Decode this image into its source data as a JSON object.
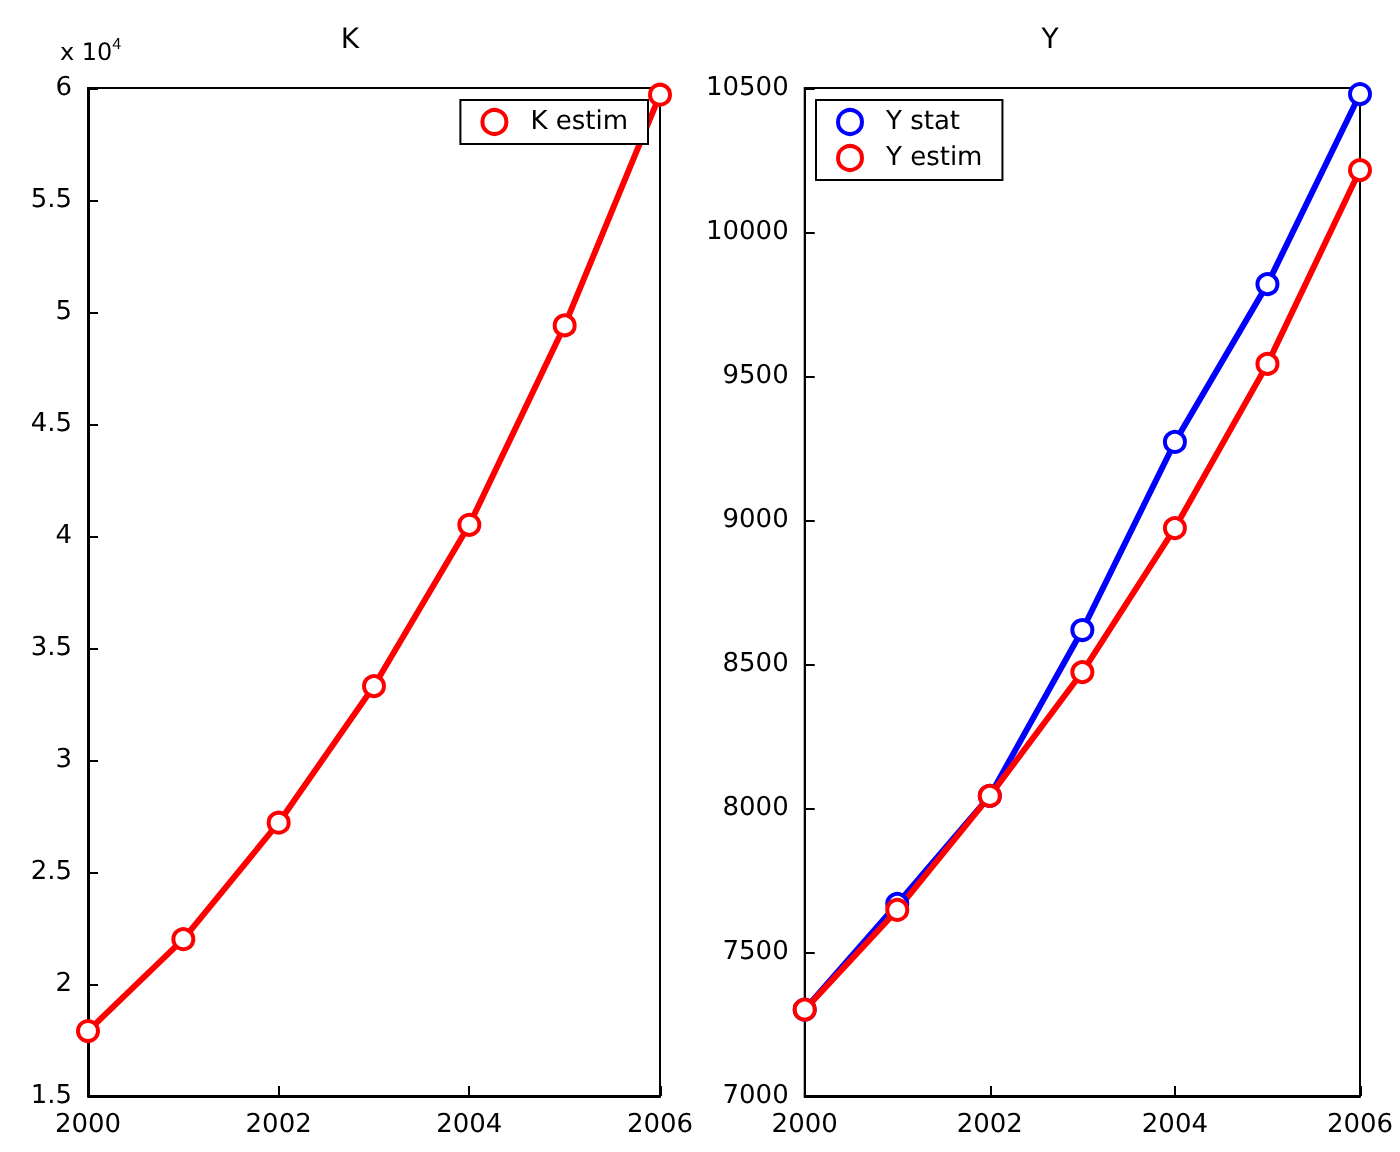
{
  "chart_data": [
    {
      "type": "line",
      "title": "K",
      "x": [
        2000,
        2001,
        2002,
        2003,
        2004,
        2005,
        2006
      ],
      "series": [
        {
          "name": "K estim",
          "color": "#ff0000",
          "values": [
            1.79,
            2.2,
            2.72,
            3.33,
            4.05,
            4.94,
            5.97
          ]
        }
      ],
      "xlim": [
        2000,
        2006
      ],
      "xticks": [
        2000,
        2002,
        2004,
        2006
      ],
      "ylim": [
        1.5,
        6
      ],
      "yticks": [
        1.5,
        2,
        2.5,
        3,
        3.5,
        4,
        4.5,
        5,
        5.5,
        6
      ],
      "annotations": [
        "x 10$^{4}$"
      ],
      "legend": "top right",
      "marker": "circle",
      "line_style": "solid",
      "grid": false
    },
    {
      "type": "line",
      "title": "Y",
      "x": [
        2000,
        2001,
        2002,
        2003,
        2004,
        2005,
        2006
      ],
      "series": [
        {
          "name": "Y stat",
          "color": "#0000ff",
          "values": [
            7300,
            7667,
            8042,
            8618,
            9271,
            9819,
            10479
          ]
        },
        {
          "name": "Y estim",
          "color": "#ff0000",
          "values": [
            7300,
            7646,
            8042,
            8472,
            8972,
            9542,
            10215
          ]
        }
      ],
      "xlim": [
        2000,
        2006
      ],
      "xticks": [
        2000,
        2002,
        2004,
        2006
      ],
      "ylim": [
        7000,
        10500
      ],
      "yticks": [
        7000,
        7500,
        8000,
        8500,
        9000,
        9500,
        10000,
        10500
      ],
      "legend": "top left",
      "marker": "circle",
      "line_style": "solid",
      "grid": false
    }
  ]
}
